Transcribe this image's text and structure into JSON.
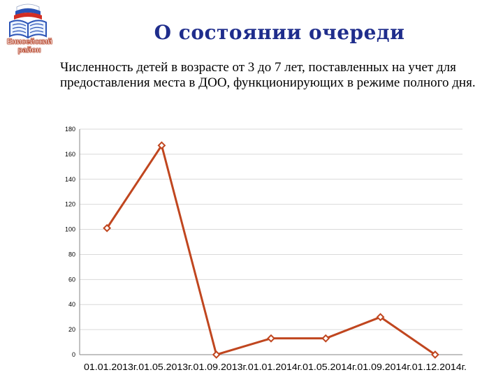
{
  "header": {
    "logo_text": "Енисейский район",
    "title": "О состоянии очереди",
    "subtitle": "Численность детей в возрасте от 3 до 7 лет, поставленных на учет для предоставления  места в ДОО, функционирующих в режиме полного дня."
  },
  "colors": {
    "title": "#1f2d8c",
    "series": "#c0461f",
    "grid": "#d9d9d9",
    "axis": "#868686"
  },
  "chart_data": {
    "type": "line",
    "categories": [
      "01.01.2013г.",
      "01.05.2013г.",
      "01.09.2013г.",
      "01.01.2014г.",
      "01.05.2014г.",
      "01.09.2014г.",
      "01.12.2014г."
    ],
    "values": [
      101,
      167,
      0,
      13,
      13,
      30,
      0
    ],
    "ylim": [
      0,
      180
    ],
    "yticks": [
      0,
      20,
      40,
      60,
      80,
      100,
      120,
      140,
      160,
      180
    ],
    "grid": true,
    "marker": "diamond",
    "title": "",
    "xlabel": "",
    "ylabel": ""
  }
}
